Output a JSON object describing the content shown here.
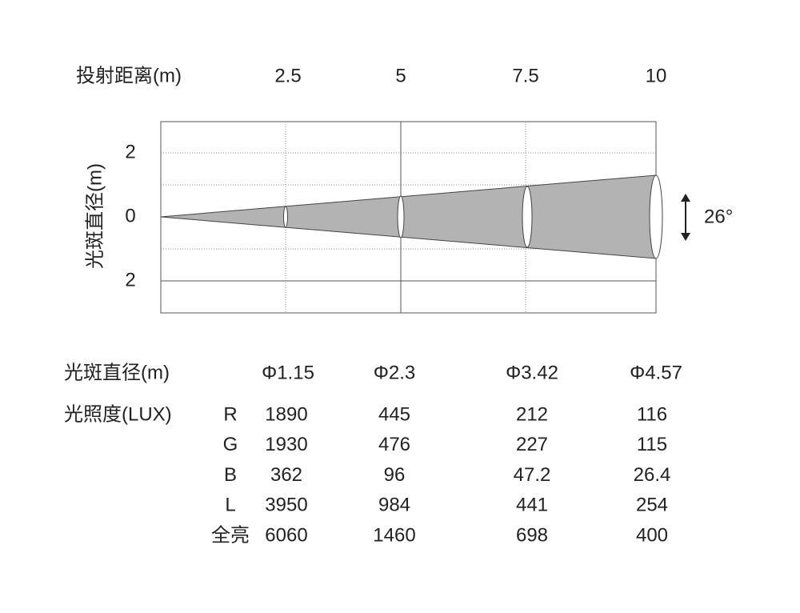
{
  "header": {
    "label": "投射距离(m)",
    "distances": [
      "2.5",
      "5",
      "7.5",
      "10"
    ]
  },
  "y_axis": {
    "label": "光斑直径(m)",
    "ticks": [
      "2",
      "0",
      "2"
    ]
  },
  "beam_angle": "26°",
  "table": {
    "diameter": {
      "label": "光斑直径(m)",
      "values": [
        "Φ1.15",
        "Φ2.3",
        "Φ3.42",
        "Φ4.57"
      ]
    },
    "illuminance": {
      "label": "光照度(LUX)",
      "rows": [
        {
          "name": "R",
          "values": [
            "1890",
            "445",
            "212",
            "116"
          ]
        },
        {
          "name": "G",
          "values": [
            "1930",
            "476",
            "227",
            "115"
          ]
        },
        {
          "name": "B",
          "values": [
            "362",
            "96",
            "47.2",
            "26.4"
          ]
        },
        {
          "name": "L",
          "values": [
            "3950",
            "984",
            "441",
            "254"
          ]
        },
        {
          "name": "全亮",
          "values": [
            "6060",
            "1460",
            "698",
            "400"
          ]
        }
      ]
    }
  }
}
